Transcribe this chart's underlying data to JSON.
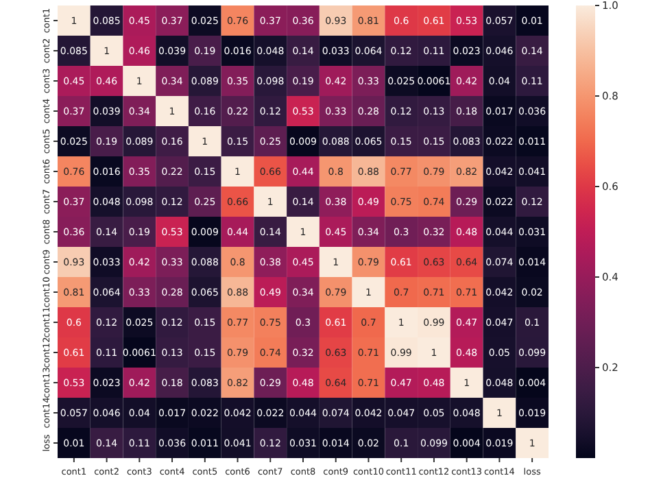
{
  "chart_data": {
    "type": "heatmap",
    "categories": [
      "cont1",
      "cont2",
      "cont3",
      "cont4",
      "cont5",
      "cont6",
      "cont7",
      "cont8",
      "cont9",
      "cont10",
      "cont11",
      "cont12",
      "cont13",
      "cont14",
      "loss"
    ],
    "y_categories": [
      "cont1",
      "cont2",
      "cont3",
      "cont4",
      "cont5",
      "cont6",
      "cont7",
      "cont8",
      "cont9",
      "cont10",
      "cont11",
      "cont12",
      "cont13",
      "cont14",
      "loss"
    ],
    "cells": [
      [
        1,
        0.085,
        0.45,
        0.37,
        0.025,
        0.76,
        0.37,
        0.36,
        0.93,
        0.81,
        0.6,
        0.61,
        0.53,
        0.057,
        0.01
      ],
      [
        0.085,
        1,
        0.46,
        0.039,
        0.19,
        0.016,
        0.048,
        0.14,
        0.033,
        0.064,
        0.12,
        0.11,
        0.023,
        0.046,
        0.14
      ],
      [
        0.45,
        0.46,
        1,
        0.34,
        0.089,
        0.35,
        0.098,
        0.19,
        0.42,
        0.33,
        0.025,
        0.0061,
        0.42,
        0.04,
        0.11
      ],
      [
        0.37,
        0.039,
        0.34,
        1,
        0.16,
        0.22,
        0.12,
        0.53,
        0.33,
        0.28,
        0.12,
        0.13,
        0.18,
        0.017,
        0.036
      ],
      [
        0.025,
        0.19,
        0.089,
        0.16,
        1,
        0.15,
        0.25,
        0.009,
        0.088,
        0.065,
        0.15,
        0.15,
        0.083,
        0.022,
        0.011
      ],
      [
        0.76,
        0.016,
        0.35,
        0.22,
        0.15,
        1,
        0.66,
        0.44,
        0.8,
        0.88,
        0.77,
        0.79,
        0.82,
        0.042,
        0.041
      ],
      [
        0.37,
        0.048,
        0.098,
        0.12,
        0.25,
        0.66,
        1,
        0.14,
        0.38,
        0.49,
        0.75,
        0.74,
        0.29,
        0.022,
        0.12
      ],
      [
        0.36,
        0.14,
        0.19,
        0.53,
        0.009,
        0.44,
        0.14,
        1,
        0.45,
        0.34,
        0.3,
        0.32,
        0.48,
        0.044,
        0.031
      ],
      [
        0.93,
        0.033,
        0.42,
        0.33,
        0.088,
        0.8,
        0.38,
        0.45,
        1,
        0.79,
        0.61,
        0.63,
        0.64,
        0.074,
        0.014
      ],
      [
        0.81,
        0.064,
        0.33,
        0.28,
        0.065,
        0.88,
        0.49,
        0.34,
        0.79,
        1,
        0.7,
        0.71,
        0.71,
        0.042,
        0.02
      ],
      [
        0.6,
        0.12,
        0.025,
        0.12,
        0.15,
        0.77,
        0.75,
        0.3,
        0.61,
        0.7,
        1,
        0.99,
        0.47,
        0.047,
        0.1
      ],
      [
        0.61,
        0.11,
        0.0061,
        0.13,
        0.15,
        0.79,
        0.74,
        0.32,
        0.63,
        0.71,
        0.99,
        1,
        0.48,
        0.05,
        0.099
      ],
      [
        0.53,
        0.023,
        0.42,
        0.18,
        0.083,
        0.82,
        0.29,
        0.48,
        0.64,
        0.71,
        0.47,
        0.48,
        1,
        0.048,
        0.004
      ],
      [
        0.057,
        0.046,
        0.04,
        0.017,
        0.022,
        0.042,
        0.022,
        0.044,
        0.074,
        0.042,
        0.047,
        0.05,
        0.048,
        1,
        0.019
      ],
      [
        0.01,
        0.14,
        0.11,
        0.036,
        0.011,
        0.041,
        0.12,
        0.031,
        0.014,
        0.02,
        0.1,
        0.099,
        0.004,
        0.019,
        1
      ]
    ],
    "data_labels": true,
    "clim": [
      0,
      1
    ],
    "cticks": [
      0.2,
      0.4,
      0.6,
      0.8,
      {
        "value": 1,
        "label": "1.0"
      }
    ]
  }
}
